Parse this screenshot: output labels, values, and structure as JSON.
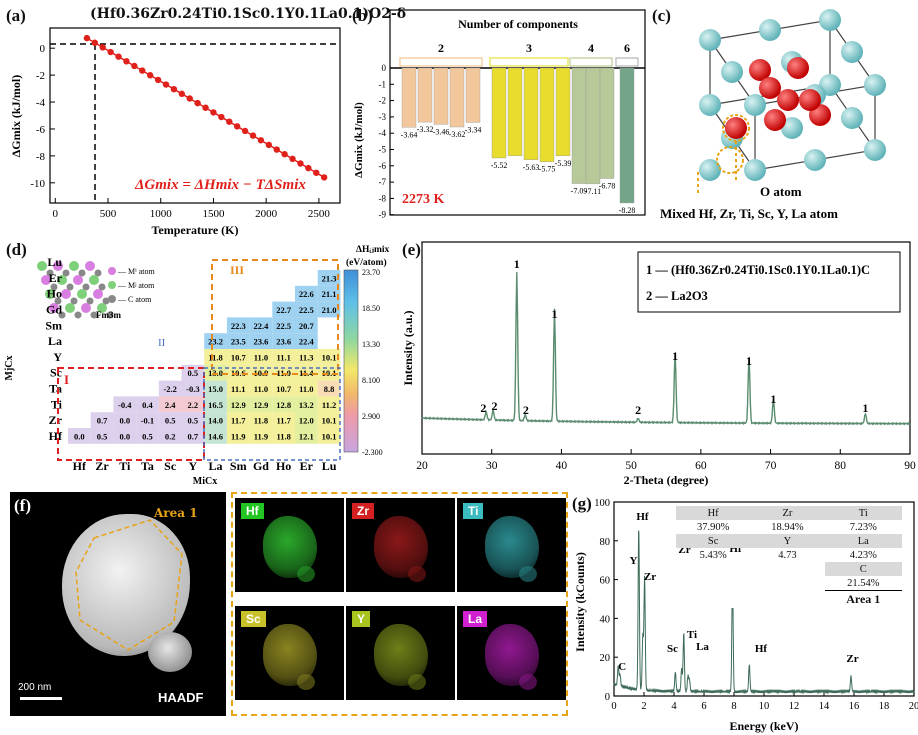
{
  "panel_labels": {
    "a": "(a)",
    "b": "(b)",
    "c": "(c)",
    "d": "(d)",
    "e": "(e)",
    "f": "(f)",
    "g": "(g)"
  },
  "panel_a": {
    "formula_title": "(Hf0.36Zr0.24Ti0.1Sc0.1Y0.1La0.1)O2-δ",
    "ylabel": "ΔGmix (kJ/mol)",
    "xlabel": "Temperature (K)",
    "equation": "ΔGmix = ΔHmix − TΔSmix",
    "xticks": [
      "0",
      "500",
      "1000",
      "1500",
      "2000",
      "2500"
    ],
    "yticks": [
      "0",
      "-2",
      "-4",
      "-6",
      "-8",
      "-10"
    ],
    "line_color": "#e0201b"
  },
  "panel_b": {
    "header": "Number of components",
    "groups": [
      "2",
      "3",
      "4",
      "6"
    ],
    "ylabel": "ΔGmix (kJ/mol)",
    "yticks": [
      "0",
      "-1",
      "-2",
      "-3",
      "-4",
      "-5",
      "-6",
      "-7",
      "-8",
      "-9"
    ],
    "temp_label": "2273 K",
    "temp_color": "#e0201b"
  },
  "panel_c": {
    "o_label": "O atom",
    "mixed_label": "Mixed Hf, Zr, Ti, Sc, Y, La atom",
    "o_color": "#e01818",
    "cation_color": "#7fc8cc"
  },
  "panel_d": {
    "legend_mi": "— Mⁱ atom",
    "legend_mj": "— Mʲ atom",
    "legend_c": "— C atom",
    "space_group": "Fm3m",
    "region_I": "I",
    "region_II": "II",
    "region_III": "III",
    "xlabel": "MiCx",
    "ylabel": "MjCx",
    "colorbar_title": "ΔHᵢⱼmix",
    "colorbar_unit": "(eV/atom)",
    "colorbar_ticks": [
      "23.70",
      "18.50",
      "13.30",
      "8.100",
      "2.900",
      "-2.300"
    ],
    "cols": [
      "Hf",
      "Zr",
      "Ti",
      "Ta",
      "Sc",
      "Y",
      "La",
      "Sm",
      "Gd",
      "Ho",
      "Er",
      "Lu"
    ],
    "rows": [
      "Lu",
      "Er",
      "Ho",
      "Gd",
      "Sm",
      "La",
      "Y",
      "Sc",
      "Ta",
      "Ti",
      "Zr",
      "Hf"
    ],
    "cells": [
      [
        null,
        null,
        null,
        null,
        null,
        null,
        null,
        null,
        null,
        null,
        null,
        "21.3"
      ],
      [
        null,
        null,
        null,
        null,
        null,
        null,
        null,
        null,
        null,
        null,
        "22.6",
        "21.1"
      ],
      [
        null,
        null,
        null,
        null,
        null,
        null,
        null,
        null,
        null,
        "22.7",
        "22.5",
        "21.0"
      ],
      [
        null,
        null,
        null,
        null,
        null,
        null,
        null,
        "22.3",
        "22.4",
        "22.5",
        "20.7",
        null
      ],
      [
        null,
        null,
        null,
        null,
        null,
        null,
        "23.2",
        "23.5",
        "23.6",
        "23.6",
        "22.4",
        null
      ],
      [
        null,
        null,
        null,
        null,
        null,
        null,
        "11.8",
        "10.7",
        "11.0",
        "11.1",
        "11.3",
        "10.1"
      ],
      [
        null,
        null,
        null,
        null,
        null,
        "0.5",
        "13.0",
        "10.6",
        "10.9",
        "11.0",
        "11.4",
        "10.1"
      ],
      [
        null,
        null,
        null,
        null,
        "-2.2",
        "-0.3",
        "15.0",
        "11.1",
        "11.0",
        "10.7",
        "11.0",
        "8.8"
      ],
      [
        null,
        null,
        "-0.4",
        "0.4",
        "2.4",
        "2.2",
        "16.5",
        "12.9",
        "12.9",
        "12.8",
        "13.2",
        "11.2"
      ],
      [
        null,
        "0.7",
        "0.0",
        "-0.1",
        "0.5",
        "0.5",
        "14.0",
        "11.7",
        "11.8",
        "11.7",
        "12.0",
        "10.1"
      ],
      [
        "0.0",
        "0.5",
        "0.0",
        "0.5",
        "0.2",
        "0.7",
        "14.6",
        "11.9",
        "11.9",
        "11.8",
        "12.1",
        "10.1"
      ]
    ]
  },
  "panel_e": {
    "ylabel": "Intensity (a.u.)",
    "xlabel": "2-Theta (degree)",
    "xticks": [
      "20",
      "30",
      "40",
      "50",
      "60",
      "70",
      "80",
      "90"
    ],
    "legend_1": "1 — (Hf0.36Zr0.24Ti0.1Sc0.1Y0.1La0.1)C",
    "legend_2": "2 — La2O3",
    "line_color": "#5b8c6f"
  },
  "panel_f": {
    "area_label": "Area 1",
    "scale_bar": "200 nm",
    "haadf": "HAADF",
    "maps": [
      {
        "label": "Hf",
        "color": "#22c522",
        "blob": "#2aa82a"
      },
      {
        "label": "Zr",
        "color": "#d42020",
        "blob": "#8a1818"
      },
      {
        "label": "Ti",
        "color": "#3bbcc0",
        "blob": "#2a8a8e"
      },
      {
        "label": "Sc",
        "color": "#c8c22a",
        "blob": "#8a8420"
      },
      {
        "label": "Y",
        "color": "#a8c41e",
        "blob": "#6e7f18"
      },
      {
        "label": "La",
        "color": "#d020d0",
        "blob": "#901890"
      }
    ]
  },
  "panel_g": {
    "ylabel": "Intensity (kCounts)",
    "xlabel": "Energy (keV)",
    "xticks": [
      "0",
      "2",
      "4",
      "6",
      "8",
      "10",
      "12",
      "14",
      "16",
      "18",
      "20"
    ],
    "yticks": [
      "0",
      "20",
      "40",
      "60",
      "80",
      "100"
    ],
    "peaks": [
      "Hf",
      "Y",
      "Zr",
      "Zr",
      "Sc",
      "Ti",
      "La",
      "Hf",
      "Hf",
      "Zr",
      "C"
    ],
    "table": [
      [
        "Hf",
        "Zr",
        "Ti"
      ],
      [
        "37.90%",
        "18.94%",
        "7.23%"
      ],
      [
        "Sc",
        "Y",
        "La"
      ],
      [
        "5.43%",
        "4.73",
        "4.23%"
      ],
      [
        "",
        "",
        "C"
      ],
      [
        "",
        "",
        "21.54%"
      ],
      [
        "",
        "",
        "Area 1"
      ]
    ]
  }
}
